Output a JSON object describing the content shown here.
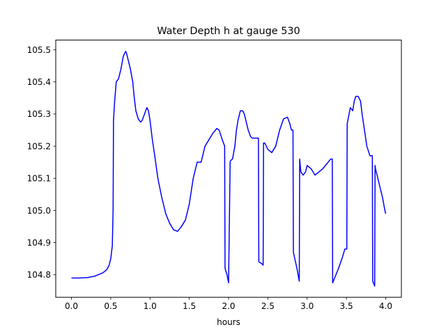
{
  "chart_data": {
    "type": "line",
    "title": "Water Depth h at gauge 530",
    "xlabel": "hours",
    "ylabel": "",
    "xlim": [
      -0.2,
      4.2
    ],
    "ylim": [
      104.73,
      105.53
    ],
    "xticks": [
      0.0,
      0.5,
      1.0,
      1.5,
      2.0,
      2.5,
      3.0,
      3.5,
      4.0
    ],
    "xtick_labels": [
      "0.0",
      "0.5",
      "1.0",
      "1.5",
      "2.0",
      "2.5",
      "3.0",
      "3.5",
      "4.0"
    ],
    "yticks": [
      104.8,
      104.9,
      105.0,
      105.1,
      105.2,
      105.3,
      105.4,
      105.5
    ],
    "ytick_labels": [
      "104.8",
      "104.9",
      "105.0",
      "105.1",
      "105.2",
      "105.3",
      "105.4",
      "105.5"
    ],
    "grid": false,
    "series": [
      {
        "color": "#0000ff",
        "x": [
          0.0,
          0.1,
          0.2,
          0.3,
          0.4,
          0.45,
          0.48,
          0.5,
          0.52,
          0.53,
          0.535,
          0.55,
          0.57,
          0.6,
          0.63,
          0.66,
          0.69,
          0.7,
          0.72,
          0.75,
          0.78,
          0.8,
          0.82,
          0.85,
          0.88,
          0.9,
          0.93,
          0.96,
          0.98,
          1.0,
          1.03,
          1.06,
          1.1,
          1.15,
          1.2,
          1.25,
          1.3,
          1.35,
          1.4,
          1.45,
          1.5,
          1.55,
          1.6,
          1.65,
          1.7,
          1.75,
          1.8,
          1.85,
          1.88,
          1.92,
          1.95,
          1.955,
          1.98,
          2.0,
          2.02,
          2.025,
          2.05,
          2.08,
          2.1,
          2.12,
          2.15,
          2.18,
          2.2,
          2.22,
          2.25,
          2.28,
          2.3,
          2.35,
          2.38,
          2.385,
          2.42,
          2.44,
          2.445,
          2.46,
          2.5,
          2.55,
          2.6,
          2.65,
          2.7,
          2.75,
          2.78,
          2.8,
          2.82,
          2.825,
          2.87,
          2.9,
          2.905,
          2.92,
          2.95,
          2.98,
          3.0,
          3.05,
          3.1,
          3.15,
          3.2,
          3.25,
          3.3,
          3.32,
          3.325,
          3.35,
          3.4,
          3.45,
          3.48,
          3.505,
          3.51,
          3.55,
          3.58,
          3.6,
          3.62,
          3.65,
          3.68,
          3.7,
          3.73,
          3.76,
          3.8,
          3.83,
          3.835,
          3.86,
          3.865,
          3.87,
          3.9,
          3.93,
          3.96,
          3.99,
          4.0
        ],
        "y": [
          104.79,
          104.79,
          104.791,
          104.796,
          104.806,
          104.816,
          104.83,
          104.85,
          104.89,
          105.0,
          105.28,
          105.34,
          105.4,
          105.41,
          105.44,
          105.48,
          105.495,
          105.49,
          105.47,
          105.44,
          105.4,
          105.35,
          105.31,
          105.285,
          105.275,
          105.28,
          105.3,
          105.32,
          105.31,
          105.28,
          105.22,
          105.17,
          105.1,
          105.04,
          104.99,
          104.96,
          104.94,
          104.935,
          104.95,
          104.97,
          105.02,
          105.1,
          105.15,
          105.15,
          105.2,
          105.22,
          105.24,
          105.255,
          105.25,
          105.22,
          105.2,
          104.82,
          104.8,
          104.775,
          105.15,
          105.155,
          105.16,
          105.2,
          105.25,
          105.28,
          105.31,
          105.31,
          105.3,
          105.28,
          105.25,
          105.23,
          105.225,
          105.225,
          105.225,
          104.84,
          104.835,
          104.83,
          105.21,
          105.21,
          105.19,
          105.18,
          105.2,
          105.25,
          105.285,
          105.29,
          105.27,
          105.25,
          105.25,
          104.87,
          104.82,
          104.78,
          105.16,
          105.12,
          105.11,
          105.12,
          105.14,
          105.13,
          105.11,
          105.12,
          105.13,
          105.145,
          105.16,
          105.16,
          104.775,
          104.79,
          104.82,
          104.855,
          104.88,
          104.88,
          105.27,
          105.32,
          105.31,
          105.34,
          105.355,
          105.355,
          105.34,
          105.3,
          105.25,
          105.2,
          105.17,
          105.17,
          104.78,
          104.765,
          105.14,
          105.13,
          105.1,
          105.07,
          105.04,
          105.0,
          104.99
        ]
      }
    ]
  }
}
